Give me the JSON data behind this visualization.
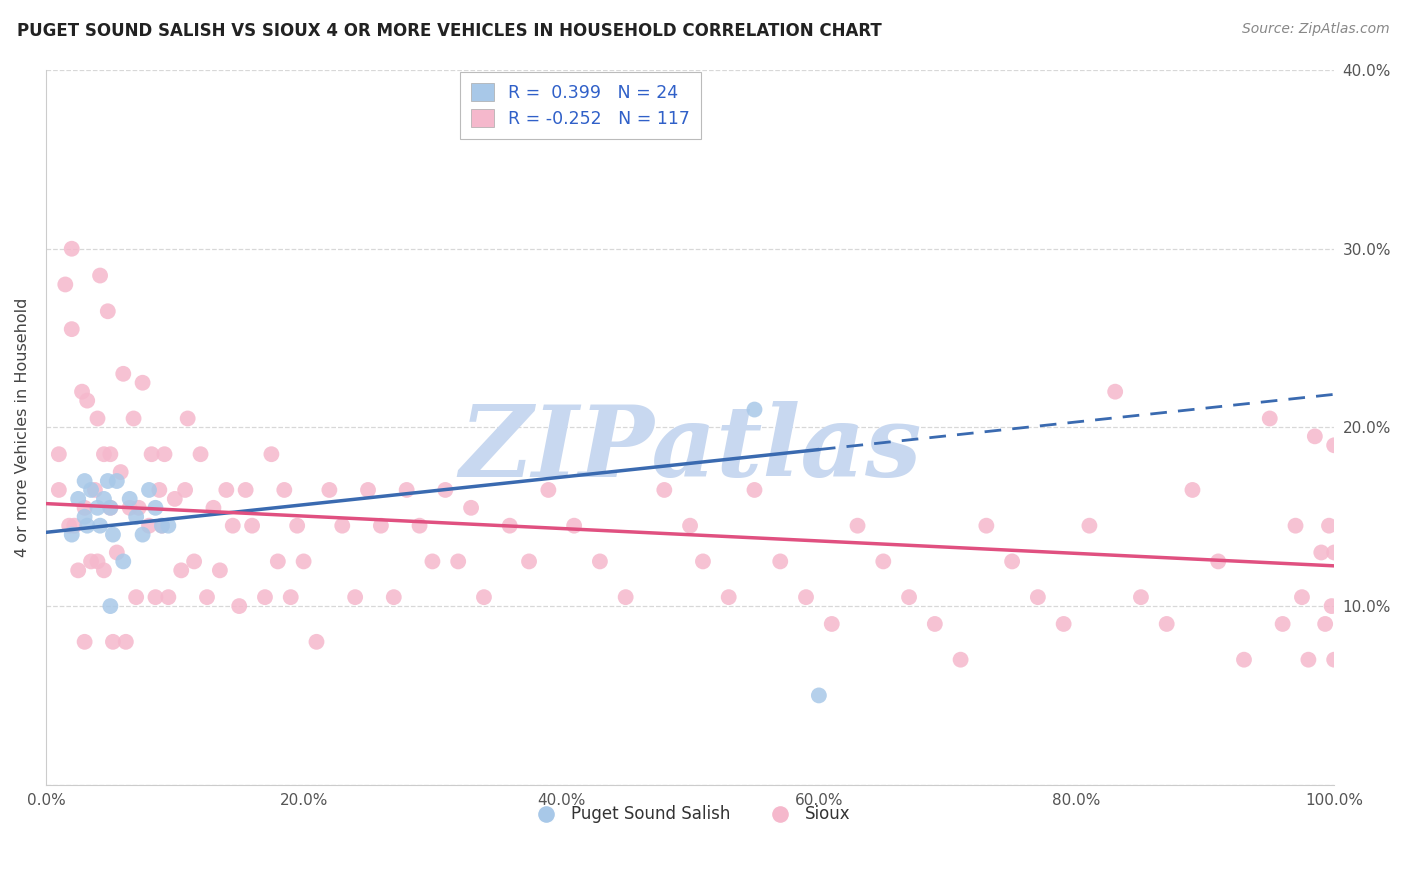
{
  "title": "PUGET SOUND SALISH VS SIOUX 4 OR MORE VEHICLES IN HOUSEHOLD CORRELATION CHART",
  "source": "Source: ZipAtlas.com",
  "ylabel": "4 or more Vehicles in Household",
  "xlim": [
    0.0,
    1.0
  ],
  "ylim": [
    0.0,
    0.4
  ],
  "blue_R": 0.399,
  "blue_N": 24,
  "pink_R": -0.252,
  "pink_N": 117,
  "blue_color": "#a8c8e8",
  "pink_color": "#f5b8cc",
  "blue_line_color": "#3a6ab0",
  "pink_line_color": "#e05080",
  "legend_label_blue": "Puget Sound Salish",
  "legend_label_pink": "Sioux",
  "watermark_text": "ZIPatlas",
  "watermark_color": "#c8d8f0",
  "bg_color": "#ffffff",
  "grid_color": "#d8d8d8",
  "tick_color": "#555555",
  "title_color": "#222222",
  "legend_num_color": "#3060c8",
  "blue_x": [
    0.02,
    0.025,
    0.03,
    0.03,
    0.032,
    0.035,
    0.04,
    0.042,
    0.045,
    0.048,
    0.05,
    0.05,
    0.052,
    0.055,
    0.06,
    0.065,
    0.07,
    0.075,
    0.08,
    0.085,
    0.09,
    0.095,
    0.55,
    0.6
  ],
  "blue_y": [
    0.14,
    0.16,
    0.15,
    0.17,
    0.145,
    0.165,
    0.155,
    0.145,
    0.16,
    0.17,
    0.1,
    0.155,
    0.14,
    0.17,
    0.125,
    0.16,
    0.15,
    0.14,
    0.165,
    0.155,
    0.145,
    0.145,
    0.21,
    0.05
  ],
  "pink_x": [
    0.01,
    0.01,
    0.015,
    0.018,
    0.02,
    0.02,
    0.022,
    0.025,
    0.028,
    0.03,
    0.03,
    0.032,
    0.035,
    0.038,
    0.04,
    0.04,
    0.042,
    0.045,
    0.045,
    0.048,
    0.05,
    0.05,
    0.052,
    0.055,
    0.058,
    0.06,
    0.062,
    0.065,
    0.068,
    0.07,
    0.072,
    0.075,
    0.08,
    0.082,
    0.085,
    0.088,
    0.09,
    0.092,
    0.095,
    0.1,
    0.105,
    0.108,
    0.11,
    0.115,
    0.12,
    0.125,
    0.13,
    0.135,
    0.14,
    0.145,
    0.15,
    0.155,
    0.16,
    0.17,
    0.175,
    0.18,
    0.185,
    0.19,
    0.195,
    0.2,
    0.21,
    0.22,
    0.23,
    0.24,
    0.25,
    0.26,
    0.27,
    0.28,
    0.29,
    0.3,
    0.31,
    0.32,
    0.33,
    0.34,
    0.36,
    0.375,
    0.39,
    0.41,
    0.43,
    0.45,
    0.48,
    0.5,
    0.51,
    0.53,
    0.55,
    0.57,
    0.59,
    0.61,
    0.63,
    0.65,
    0.67,
    0.69,
    0.71,
    0.73,
    0.75,
    0.77,
    0.79,
    0.81,
    0.83,
    0.85,
    0.87,
    0.89,
    0.91,
    0.93,
    0.95,
    0.96,
    0.97,
    0.975,
    0.98,
    0.985,
    0.99,
    0.993,
    0.996,
    0.998,
    1.0,
    1.0,
    1.0
  ],
  "pink_y": [
    0.165,
    0.185,
    0.28,
    0.145,
    0.255,
    0.3,
    0.145,
    0.12,
    0.22,
    0.155,
    0.08,
    0.215,
    0.125,
    0.165,
    0.125,
    0.205,
    0.285,
    0.12,
    0.185,
    0.265,
    0.155,
    0.185,
    0.08,
    0.13,
    0.175,
    0.23,
    0.08,
    0.155,
    0.205,
    0.105,
    0.155,
    0.225,
    0.145,
    0.185,
    0.105,
    0.165,
    0.145,
    0.185,
    0.105,
    0.16,
    0.12,
    0.165,
    0.205,
    0.125,
    0.185,
    0.105,
    0.155,
    0.12,
    0.165,
    0.145,
    0.1,
    0.165,
    0.145,
    0.105,
    0.185,
    0.125,
    0.165,
    0.105,
    0.145,
    0.125,
    0.08,
    0.165,
    0.145,
    0.105,
    0.165,
    0.145,
    0.105,
    0.165,
    0.145,
    0.125,
    0.165,
    0.125,
    0.155,
    0.105,
    0.145,
    0.125,
    0.165,
    0.145,
    0.125,
    0.105,
    0.165,
    0.145,
    0.125,
    0.105,
    0.165,
    0.125,
    0.105,
    0.09,
    0.145,
    0.125,
    0.105,
    0.09,
    0.07,
    0.145,
    0.125,
    0.105,
    0.09,
    0.145,
    0.22,
    0.105,
    0.09,
    0.165,
    0.125,
    0.07,
    0.205,
    0.09,
    0.145,
    0.105,
    0.07,
    0.195,
    0.13,
    0.09,
    0.145,
    0.1,
    0.07,
    0.19,
    0.13
  ]
}
